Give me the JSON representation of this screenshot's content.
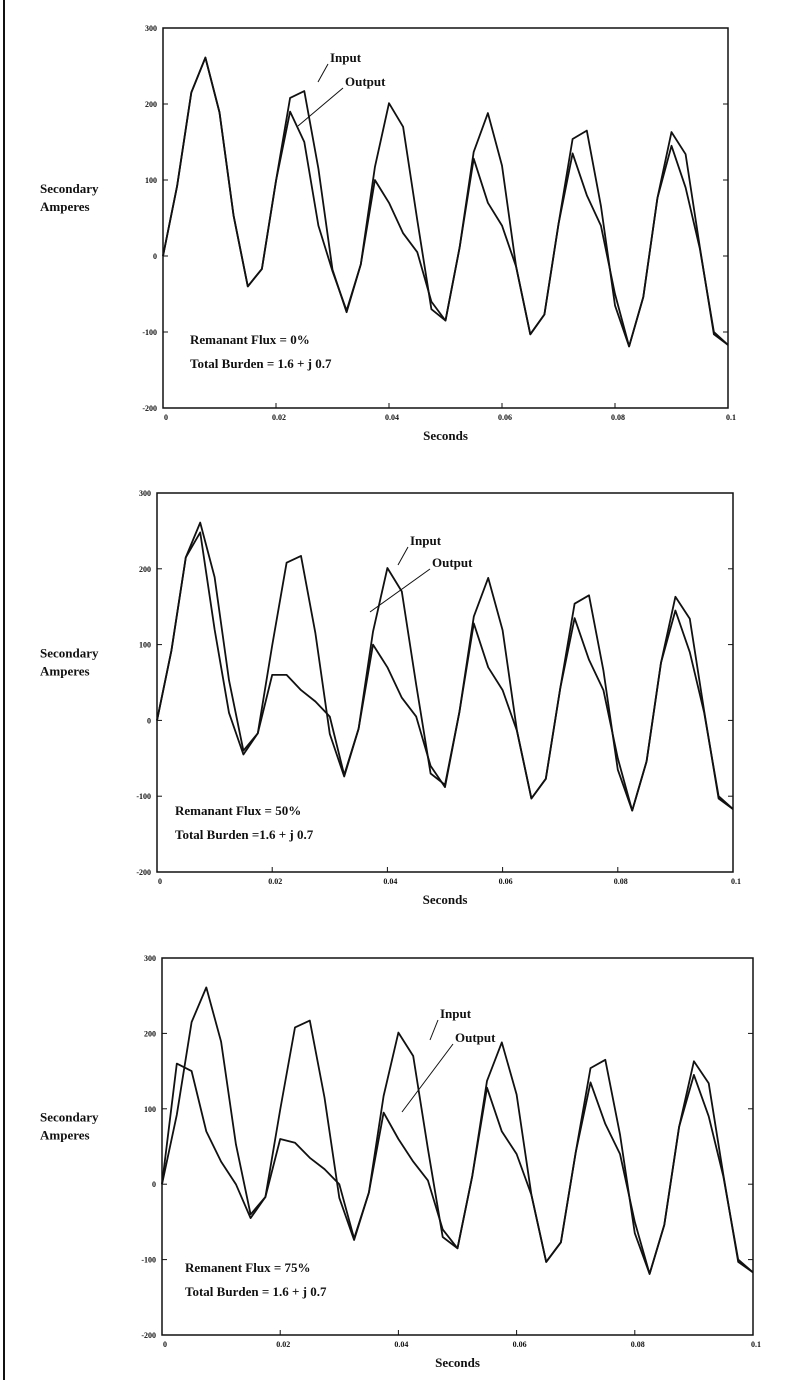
{
  "chart_data": [
    {
      "type": "line",
      "ylabel": "Secondary Amperes",
      "xlabel": "Seconds",
      "annotations": [
        "Remanant Flux = 0%",
        "Total Burden = 1.6 + j 0.7"
      ],
      "x": [
        0,
        0.0025,
        0.005,
        0.0075,
        0.01,
        0.0125,
        0.015,
        0.0175,
        0.02,
        0.0225,
        0.025,
        0.0275,
        0.03,
        0.0325,
        0.035,
        0.0375,
        0.04,
        0.0425,
        0.045,
        0.0475,
        0.05,
        0.0525,
        0.055,
        0.0575,
        0.06,
        0.0625,
        0.065,
        0.0675,
        0.07,
        0.0725,
        0.075,
        0.0775,
        0.08,
        0.0825,
        0.085,
        0.0875,
        0.09,
        0.0925,
        0.095,
        0.0975,
        0.1
      ],
      "xlim": [
        0,
        0.1
      ],
      "xticks": [
        0,
        0.02,
        0.04,
        0.06,
        0.08,
        0.1
      ],
      "ylim": [
        -200,
        300
      ],
      "yticks": [
        -200,
        -100,
        0,
        100,
        200,
        300
      ],
      "series": [
        {
          "name": "Input",
          "color": "#111111",
          "values": [
            0,
            92,
            215,
            261,
            189,
            53,
            -40,
            -17,
            99,
            208,
            217,
            115,
            -18,
            -74,
            -11,
            117,
            201,
            170,
            47,
            -70,
            -85,
            11,
            137,
            188,
            119,
            -14,
            -103,
            -77,
            42,
            154,
            165,
            66,
            -65,
            -119,
            -54,
            76,
            163,
            134,
            12,
            -103,
            -117
          ]
        },
        {
          "name": "Output",
          "color": "#111111",
          "values": [
            0,
            92,
            215,
            261,
            189,
            53,
            -40,
            -17,
            99,
            190,
            150,
            40,
            -20,
            -72,
            -11,
            100,
            70,
            30,
            5,
            -60,
            -85,
            11,
            128,
            70,
            40,
            -14,
            -103,
            -77,
            42,
            135,
            80,
            40,
            -50,
            -119,
            -54,
            76,
            145,
            90,
            10,
            -100,
            -117
          ]
        }
      ]
    },
    {
      "type": "line",
      "ylabel": "Secondary Amperes",
      "xlabel": "Seconds",
      "annotations": [
        "Remanant Flux = 50%",
        "Total Burden =1.6 + j 0.7"
      ],
      "x": [
        0,
        0.0025,
        0.005,
        0.0075,
        0.01,
        0.0125,
        0.015,
        0.0175,
        0.02,
        0.0225,
        0.025,
        0.0275,
        0.03,
        0.0325,
        0.035,
        0.0375,
        0.04,
        0.0425,
        0.045,
        0.0475,
        0.05,
        0.0525,
        0.055,
        0.0575,
        0.06,
        0.0625,
        0.065,
        0.0675,
        0.07,
        0.0725,
        0.075,
        0.0775,
        0.08,
        0.0825,
        0.085,
        0.0875,
        0.09,
        0.0925,
        0.095,
        0.0975,
        0.1
      ],
      "xlim": [
        0,
        0.1
      ],
      "xticks": [
        0,
        0.02,
        0.04,
        0.06,
        0.08,
        0.1
      ],
      "ylim": [
        -200,
        300
      ],
      "yticks": [
        -200,
        -100,
        0,
        100,
        200,
        300
      ],
      "series": [
        {
          "name": "Input",
          "color": "#111111",
          "values": [
            0,
            92,
            215,
            261,
            189,
            53,
            -40,
            -17,
            99,
            208,
            217,
            115,
            -18,
            -74,
            -11,
            117,
            201,
            170,
            47,
            -70,
            -85,
            11,
            137,
            188,
            119,
            -14,
            -103,
            -77,
            42,
            154,
            165,
            66,
            -65,
            -119,
            -54,
            76,
            163,
            134,
            12,
            -103,
            -117
          ]
        },
        {
          "name": "Output",
          "color": "#111111",
          "values": [
            0,
            92,
            215,
            248,
            120,
            10,
            -45,
            -17,
            60,
            60,
            40,
            25,
            5,
            -72,
            -11,
            100,
            70,
            30,
            5,
            -60,
            -88,
            11,
            128,
            70,
            40,
            -14,
            -103,
            -77,
            42,
            135,
            80,
            40,
            -50,
            -119,
            -54,
            76,
            145,
            90,
            10,
            -100,
            -117
          ]
        }
      ]
    },
    {
      "type": "line",
      "ylabel": "Secondary Amperes",
      "xlabel": "Seconds",
      "annotations": [
        "Remanent Flux = 75%",
        "Total Burden = 1.6 + j 0.7"
      ],
      "x": [
        0,
        0.0025,
        0.005,
        0.0075,
        0.01,
        0.0125,
        0.015,
        0.0175,
        0.02,
        0.0225,
        0.025,
        0.0275,
        0.03,
        0.0325,
        0.035,
        0.0375,
        0.04,
        0.0425,
        0.045,
        0.0475,
        0.05,
        0.0525,
        0.055,
        0.0575,
        0.06,
        0.0625,
        0.065,
        0.0675,
        0.07,
        0.0725,
        0.075,
        0.0775,
        0.08,
        0.0825,
        0.085,
        0.0875,
        0.09,
        0.0925,
        0.095,
        0.0975,
        0.1
      ],
      "xlim": [
        0,
        0.1
      ],
      "xticks": [
        0,
        0.02,
        0.04,
        0.06,
        0.08,
        0.1
      ],
      "ylim": [
        -200,
        300
      ],
      "yticks": [
        -200,
        -100,
        0,
        100,
        200,
        300
      ],
      "series": [
        {
          "name": "Input",
          "color": "#111111",
          "values": [
            0,
            92,
            215,
            261,
            189,
            53,
            -40,
            -17,
            99,
            208,
            217,
            115,
            -18,
            -74,
            -11,
            117,
            201,
            170,
            47,
            -70,
            -85,
            11,
            137,
            188,
            119,
            -14,
            -103,
            -77,
            42,
            154,
            165,
            66,
            -65,
            -119,
            -54,
            76,
            163,
            134,
            12,
            -103,
            -117
          ]
        },
        {
          "name": "Output",
          "color": "#111111",
          "values": [
            0,
            160,
            150,
            70,
            30,
            0,
            -45,
            -17,
            60,
            55,
            35,
            20,
            0,
            -72,
            -11,
            95,
            60,
            30,
            5,
            -60,
            -85,
            11,
            128,
            70,
            40,
            -14,
            -103,
            -77,
            42,
            135,
            80,
            40,
            -50,
            -119,
            -54,
            76,
            145,
            90,
            10,
            -100,
            -117
          ]
        }
      ]
    }
  ]
}
